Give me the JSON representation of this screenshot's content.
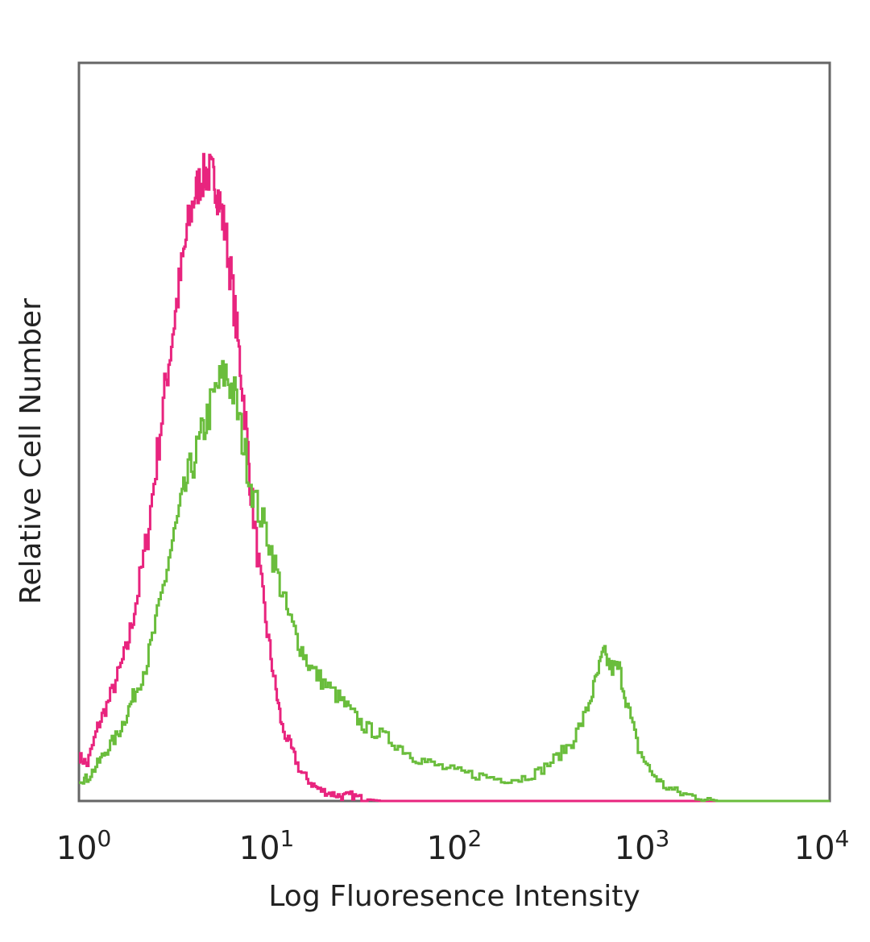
{
  "chart_data": {
    "type": "line",
    "xlabel": "Log Fluoresence Intensity",
    "ylabel": "Relative Cell Number",
    "x_scale": "log",
    "xlim": [
      1,
      10000
    ],
    "ylim": [
      0,
      100
    ],
    "grid": false,
    "y_ticks_shown": false,
    "x_ticks": [
      {
        "value": 1,
        "base": "10",
        "exp": "0"
      },
      {
        "value": 10,
        "base": "10",
        "exp": "1"
      },
      {
        "value": 100,
        "base": "10",
        "exp": "2"
      },
      {
        "value": 1000,
        "base": "10",
        "exp": "3"
      },
      {
        "value": 10000,
        "base": "10",
        "exp": "4"
      }
    ],
    "series": [
      {
        "color": "#e8247e",
        "x": [
          1,
          1.1,
          1.25,
          1.4,
          1.6,
          1.8,
          2.0,
          2.3,
          2.6,
          2.9,
          3.2,
          3.5,
          3.8,
          4.1,
          4.4,
          4.7,
          5.0,
          5.3,
          5.6,
          6.0,
          6.5,
          7.0,
          7.6,
          8.2,
          9.0,
          10,
          11,
          12,
          13.5,
          15,
          17,
          19,
          22,
          25,
          28,
          32,
          40,
          60,
          100,
          1000,
          10000
        ],
        "y": [
          6,
          5,
          10,
          13,
          17,
          21,
          27,
          36,
          47,
          57,
          65,
          72,
          78,
          82,
          84,
          85,
          85,
          84,
          81,
          77,
          70,
          62,
          53,
          42,
          32,
          23,
          16,
          10,
          7,
          4,
          2.5,
          1.5,
          1,
          0.6,
          0.8,
          0.3,
          0,
          0,
          0,
          0,
          0
        ]
      },
      {
        "color": "#6abd3c",
        "x": [
          1,
          1.1,
          1.25,
          1.4,
          1.6,
          1.8,
          2.0,
          2.3,
          2.6,
          3.0,
          3.4,
          3.8,
          4.3,
          4.8,
          5.4,
          6.0,
          6.7,
          7.5,
          8.5,
          10,
          11.5,
          13,
          15,
          17,
          20,
          24,
          28,
          33,
          40,
          50,
          60,
          75,
          100,
          130,
          170,
          220,
          280,
          350,
          420,
          500,
          560,
          620,
          680,
          750,
          830,
          950,
          1100,
          1300,
          1600,
          2000,
          2500,
          10000
        ],
        "y": [
          3,
          3,
          5,
          7,
          9,
          12,
          15,
          19,
          25,
          33,
          39,
          44,
          48,
          52,
          56,
          58,
          55,
          48,
          41,
          36,
          30,
          25,
          21,
          18,
          16,
          14,
          12,
          10,
          9,
          7.5,
          6,
          5,
          4,
          3.5,
          3,
          3,
          4,
          6,
          8,
          12,
          16,
          20,
          18,
          18,
          13,
          7,
          4,
          2,
          1,
          0.5,
          0,
          0
        ]
      }
    ]
  }
}
